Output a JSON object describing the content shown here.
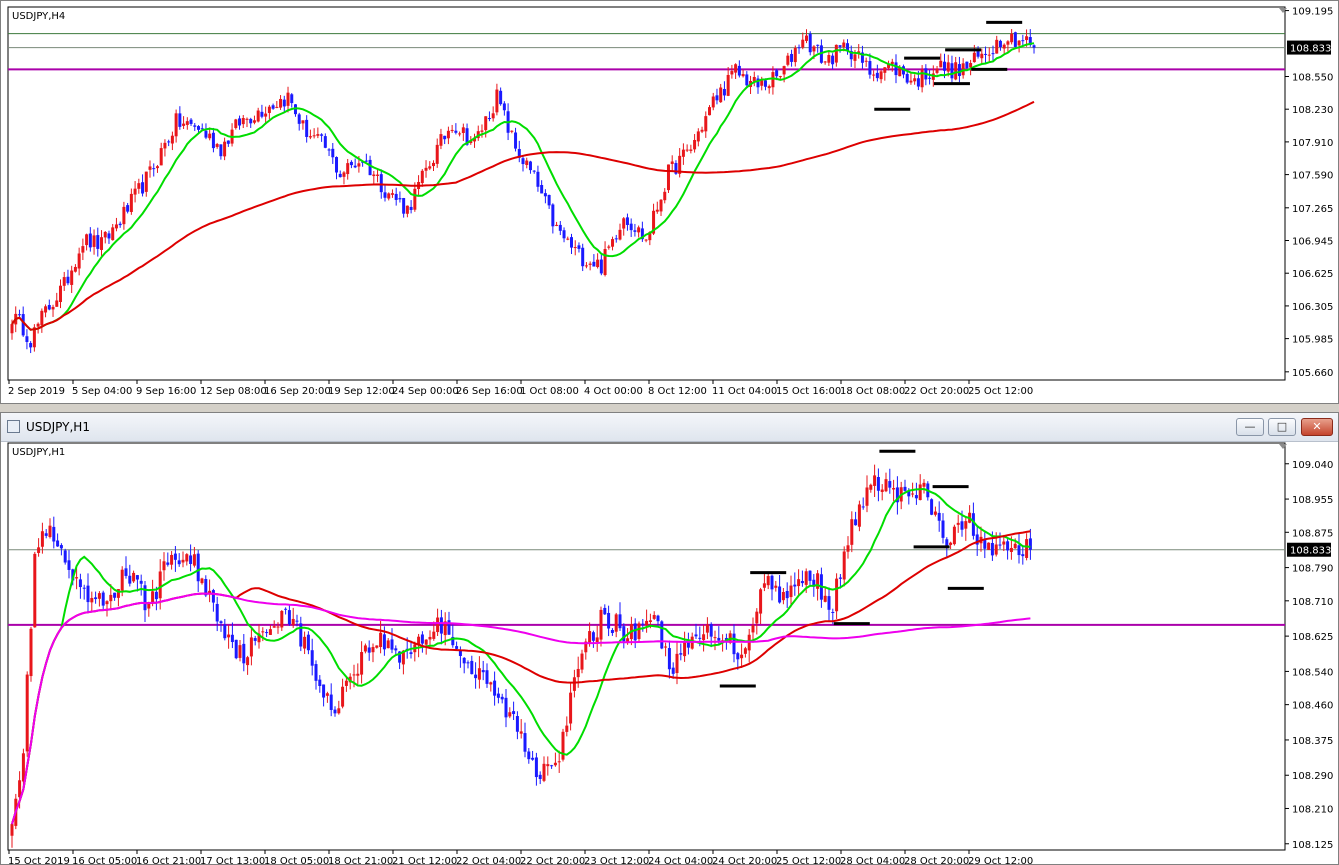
{
  "windows": [
    {
      "symbol_label": "USDJPY,H4",
      "window_title": "",
      "current_price": "108.833",
      "chart_data": {
        "type": "candlestick",
        "title": "USDJPY,H4",
        "ylim": [
          105.58,
          109.23
        ],
        "yticks": [
          "109.195",
          "108.833",
          "108.550",
          "108.230",
          "107.910",
          "107.590",
          "107.265",
          "106.945",
          "106.625",
          "106.305",
          "105.985",
          "105.660"
        ],
        "xticks": [
          "2 Sep 2019",
          "5 Sep 04:00",
          "9 Sep 16:00",
          "12 Sep 08:00",
          "16 Sep 20:00",
          "19 Sep 12:00",
          "24 Sep 00:00",
          "26 Sep 16:00",
          "1 Oct 08:00",
          "4 Oct 00:00",
          "8 Oct 12:00",
          "11 Oct 04:00",
          "15 Oct 16:00",
          "18 Oct 08:00",
          "22 Oct 20:00",
          "25 Oct 12:00"
        ],
        "close_anchors": [
          [
            0,
            106.2
          ],
          [
            3,
            106.1
          ],
          [
            5,
            105.98
          ],
          [
            9,
            106.25
          ],
          [
            14,
            106.5
          ],
          [
            19,
            106.95
          ],
          [
            24,
            106.9
          ],
          [
            30,
            107.2
          ],
          [
            37,
            107.6
          ],
          [
            44,
            108.1
          ],
          [
            50,
            108.05
          ],
          [
            56,
            107.85
          ],
          [
            61,
            108.1
          ],
          [
            68,
            108.25
          ],
          [
            74,
            108.35
          ],
          [
            78,
            108.05
          ],
          [
            84,
            107.85
          ],
          [
            88,
            107.6
          ],
          [
            94,
            107.75
          ],
          [
            100,
            107.45
          ],
          [
            106,
            107.25
          ],
          [
            112,
            107.7
          ],
          [
            118,
            108.1
          ],
          [
            124,
            107.9
          ],
          [
            130,
            108.35
          ],
          [
            135,
            107.85
          ],
          [
            140,
            107.55
          ],
          [
            146,
            107.05
          ],
          [
            152,
            106.8
          ],
          [
            158,
            106.7
          ],
          [
            164,
            107.2
          ],
          [
            170,
            106.95
          ],
          [
            176,
            107.6
          ],
          [
            182,
            107.85
          ],
          [
            188,
            108.3
          ],
          [
            194,
            108.6
          ],
          [
            200,
            108.45
          ],
          [
            206,
            108.55
          ],
          [
            212,
            108.95
          ],
          [
            218,
            108.7
          ],
          [
            224,
            108.85
          ],
          [
            230,
            108.6
          ],
          [
            236,
            108.65
          ],
          [
            242,
            108.5
          ],
          [
            248,
            108.65
          ],
          [
            254,
            108.6
          ],
          [
            260,
            108.75
          ],
          [
            266,
            108.95
          ],
          [
            272,
            108.9
          ],
          [
            274,
            108.833
          ]
        ],
        "ma_fast_color": "#00dd00",
        "ma_slow_color": "#dd0000",
        "hline_levels": [
          {
            "price": 108.62,
            "color": "#aa00aa"
          },
          {
            "price": 108.97,
            "color": "#3c7a3c"
          },
          {
            "price": 108.833,
            "color": "#7a8a7a"
          }
        ],
        "level_marks": [
          {
            "i": 236,
            "price": 108.23
          },
          {
            "i": 244,
            "price": 108.73
          },
          {
            "i": 252,
            "price": 108.48
          },
          {
            "i": 255,
            "price": 108.81
          },
          {
            "i": 262,
            "price": 108.62
          },
          {
            "i": 266,
            "price": 109.08
          }
        ]
      }
    },
    {
      "symbol_label": "USDJPY,H1",
      "window_title": "USDJPY,H1",
      "current_price": "108.833",
      "chart_data": {
        "type": "candlestick",
        "title": "USDJPY,H1",
        "ylim": [
          108.11,
          109.09
        ],
        "yticks": [
          "109.040",
          "108.955",
          "108.875",
          "108.833",
          "108.790",
          "108.710",
          "108.625",
          "108.540",
          "108.460",
          "108.375",
          "108.290",
          "108.210",
          "108.125"
        ],
        "xticks": [
          "15 Oct 2019",
          "16 Oct 05:00",
          "16 Oct 21:00",
          "17 Oct 13:00",
          "18 Oct 05:00",
          "18 Oct 21:00",
          "21 Oct 12:00",
          "22 Oct 04:00",
          "22 Oct 20:00",
          "23 Oct 12:00",
          "24 Oct 04:00",
          "24 Oct 20:00",
          "25 Oct 12:00",
          "28 Oct 04:00",
          "28 Oct 20:00",
          "29 Oct 12:00"
        ],
        "close_anchors": [
          [
            0,
            108.2
          ],
          [
            3,
            108.35
          ],
          [
            6,
            108.82
          ],
          [
            9,
            108.88
          ],
          [
            14,
            108.8
          ],
          [
            18,
            108.72
          ],
          [
            24,
            108.7
          ],
          [
            30,
            108.78
          ],
          [
            36,
            108.7
          ],
          [
            42,
            108.82
          ],
          [
            48,
            108.8
          ],
          [
            54,
            108.68
          ],
          [
            60,
            108.58
          ],
          [
            66,
            108.62
          ],
          [
            72,
            108.7
          ],
          [
            78,
            108.58
          ],
          [
            84,
            108.44
          ],
          [
            90,
            108.55
          ],
          [
            96,
            108.62
          ],
          [
            102,
            108.58
          ],
          [
            108,
            108.62
          ],
          [
            114,
            108.66
          ],
          [
            120,
            108.55
          ],
          [
            126,
            108.5
          ],
          [
            132,
            108.42
          ],
          [
            138,
            108.3
          ],
          [
            144,
            108.35
          ],
          [
            150,
            108.58
          ],
          [
            156,
            108.68
          ],
          [
            162,
            108.62
          ],
          [
            168,
            108.68
          ],
          [
            174,
            108.55
          ],
          [
            180,
            108.62
          ],
          [
            186,
            108.64
          ],
          [
            192,
            108.58
          ],
          [
            198,
            108.76
          ],
          [
            204,
            108.72
          ],
          [
            210,
            108.78
          ],
          [
            216,
            108.7
          ],
          [
            222,
            108.92
          ],
          [
            228,
            109.0
          ],
          [
            234,
            108.96
          ],
          [
            240,
            108.97
          ],
          [
            246,
            108.85
          ],
          [
            252,
            108.9
          ],
          [
            258,
            108.82
          ],
          [
            264,
            108.84
          ],
          [
            268,
            108.833
          ]
        ],
        "ma_fast_color": "#00dd00",
        "ma_mid_color": "#dd0000",
        "ma_slow_color": "#ee00ee",
        "hline_levels": [
          {
            "price": 108.652,
            "color": "#aa00aa"
          },
          {
            "price": 108.833,
            "color": "#7a8a7a"
          }
        ],
        "level_marks": [
          {
            "i": 199,
            "price": 108.778
          },
          {
            "i": 191,
            "price": 108.505
          },
          {
            "i": 221,
            "price": 108.655
          },
          {
            "i": 233,
            "price": 109.07
          },
          {
            "i": 247,
            "price": 108.985
          },
          {
            "i": 242,
            "price": 108.84
          },
          {
            "i": 251,
            "price": 108.74
          }
        ]
      }
    }
  ]
}
